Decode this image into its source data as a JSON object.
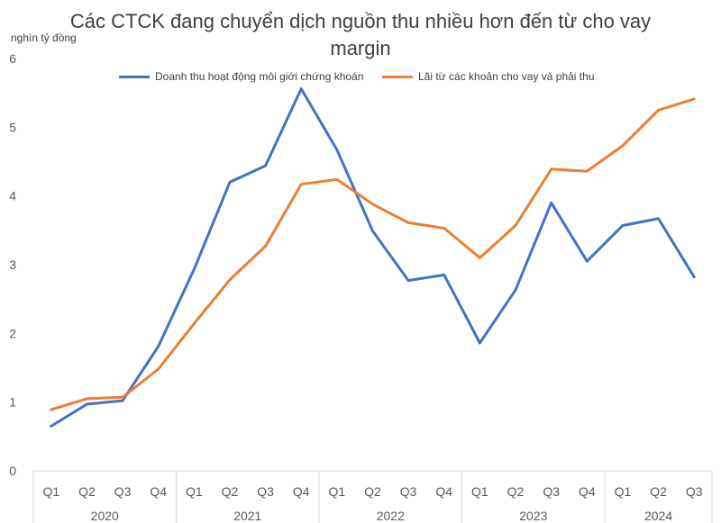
{
  "chart_data": {
    "type": "line",
    "title_line1": "Các CTCK đang chuyển dịch nguồn thu nhiều hơn đến từ cho vay",
    "title_line2": "margin",
    "y_unit_label": "nghìn tỷ đồng",
    "ylim": [
      0,
      6
    ],
    "y_ticks": [
      0,
      1,
      2,
      3,
      4,
      5,
      6
    ],
    "grid": false,
    "legend_position": "top",
    "quarters": [
      "Q1",
      "Q2",
      "Q3",
      "Q4",
      "Q1",
      "Q2",
      "Q3",
      "Q4",
      "Q1",
      "Q2",
      "Q3",
      "Q4",
      "Q1",
      "Q2",
      "Q3",
      "Q4",
      "Q1",
      "Q2",
      "Q3"
    ],
    "years": [
      {
        "label": "2020",
        "count": 4
      },
      {
        "label": "2021",
        "count": 4
      },
      {
        "label": "2022",
        "count": 4
      },
      {
        "label": "2023",
        "count": 4
      },
      {
        "label": "2024",
        "count": 3
      }
    ],
    "series": [
      {
        "name": "Doanh thu hoạt động môi giới chứng khoán",
        "color": "#4472C4",
        "values": [
          0.65,
          0.97,
          1.02,
          1.81,
          2.93,
          4.2,
          4.44,
          5.56,
          4.67,
          3.49,
          2.77,
          2.85,
          1.86,
          2.63,
          3.9,
          3.05,
          3.57,
          3.67,
          2.82
        ]
      },
      {
        "name": "Lãi từ các khoản cho vay và phải thu",
        "color": "#ED7D31",
        "values": [
          0.89,
          1.05,
          1.07,
          1.48,
          2.14,
          2.78,
          3.27,
          4.17,
          4.24,
          3.88,
          3.61,
          3.53,
          3.1,
          3.57,
          4.39,
          4.36,
          4.73,
          5.25,
          5.41
        ]
      }
    ]
  }
}
